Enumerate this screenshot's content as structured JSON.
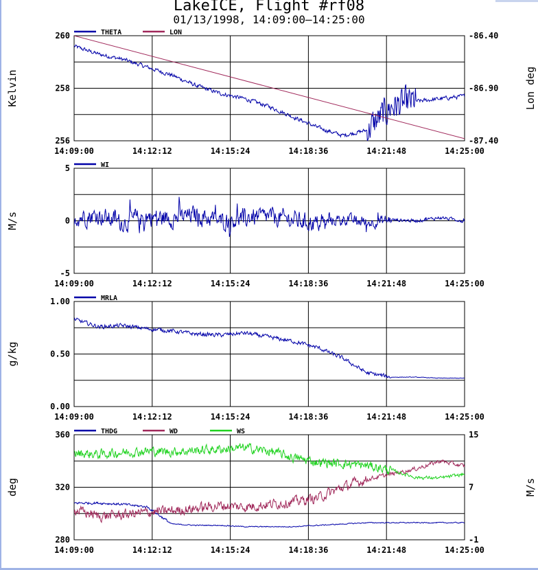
{
  "title": "LakeICE, Flight #rf08",
  "subtitle": "01/13/1998, 14:09:00–14:25:00",
  "colors": {
    "blue": "#0000a8",
    "maroon": "#a0285a",
    "green": "#1ed21e"
  },
  "chart_data": [
    {
      "type": "line",
      "x_ticks": [
        "14:09:00",
        "14:12:12",
        "14:15:24",
        "14:18:36",
        "14:21:48",
        "14:25:00"
      ],
      "ylabel": "Kelvin",
      "ylim": [
        256,
        260
      ],
      "y_ticks": [
        "256",
        "258",
        "260"
      ],
      "y2label": "Lon deg",
      "y2lim": [
        -87.4,
        -86.4
      ],
      "y2_ticks": [
        "-87.40",
        "-86.90",
        "-86.40"
      ],
      "grid": true,
      "legend": "top-left",
      "series": [
        {
          "name": "THETA",
          "axis": "left",
          "color": "blue",
          "x": [
            0,
            60,
            120,
            180,
            240,
            300,
            360,
            420,
            480,
            540,
            600,
            660,
            720,
            780,
            840,
            900,
            960
          ],
          "values": [
            259.6,
            259.3,
            259.1,
            258.8,
            258.5,
            258.1,
            257.8,
            257.6,
            257.3,
            256.9,
            256.5,
            256.2,
            256.4,
            257.3,
            257.5,
            257.6,
            257.7
          ]
        },
        {
          "name": "LON",
          "axis": "right",
          "color": "maroon",
          "x": [
            0,
            960
          ],
          "values": [
            -86.4,
            -87.38
          ]
        }
      ]
    },
    {
      "type": "line",
      "x_ticks": [
        "14:09:00",
        "14:12:12",
        "14:15:24",
        "14:18:36",
        "14:21:48",
        "14:25:00"
      ],
      "ylabel": "M/s",
      "ylim": [
        -5,
        5
      ],
      "y_ticks": [
        "-5",
        "0",
        "5"
      ],
      "grid": true,
      "legend": "top-left",
      "series": [
        {
          "name": "WI",
          "axis": "left",
          "color": "blue",
          "x": [
            0,
            60,
            120,
            180,
            240,
            300,
            360,
            420,
            480,
            540,
            600,
            660,
            720,
            780,
            840,
            900,
            960
          ],
          "values": [
            0.3,
            0.5,
            -0.2,
            0.4,
            0.2,
            0.6,
            -0.1,
            0.3,
            0.4,
            0.1,
            -0.3,
            0.2,
            -0.2,
            0.1,
            0.0,
            0.3,
            0.0
          ]
        }
      ]
    },
    {
      "type": "line",
      "x_ticks": [
        "14:09:00",
        "14:12:12",
        "14:15:24",
        "14:18:36",
        "14:21:48",
        "14:25:00"
      ],
      "ylabel": "g/kg",
      "ylim": [
        0.0,
        1.0
      ],
      "y_ticks": [
        "0.00",
        "0.50",
        "1.00"
      ],
      "grid": true,
      "legend": "top-left",
      "series": [
        {
          "name": "MRLA",
          "axis": "left",
          "color": "blue",
          "x": [
            0,
            60,
            120,
            180,
            240,
            300,
            360,
            420,
            480,
            540,
            600,
            660,
            720,
            780,
            840,
            900,
            960
          ],
          "values": [
            0.83,
            0.76,
            0.77,
            0.74,
            0.72,
            0.69,
            0.68,
            0.7,
            0.66,
            0.62,
            0.56,
            0.46,
            0.32,
            0.28,
            0.28,
            0.27,
            0.27
          ]
        }
      ]
    },
    {
      "type": "line",
      "x_ticks": [
        "14:09:00",
        "14:12:12",
        "14:15:24",
        "14:18:36",
        "14:21:48",
        "14:25:00"
      ],
      "ylabel": "deg",
      "ylim": [
        280,
        360
      ],
      "y_ticks": [
        "280",
        "320",
        "360"
      ],
      "y2label": "M/s",
      "y2lim": [
        -1,
        15
      ],
      "y2_ticks": [
        "-1",
        "7",
        "15"
      ],
      "grid": true,
      "legend": "top-left",
      "series": [
        {
          "name": "THDG",
          "axis": "left",
          "color": "blue",
          "x": [
            0,
            60,
            120,
            180,
            240,
            300,
            360,
            420,
            480,
            540,
            600,
            660,
            720,
            780,
            840,
            900,
            960
          ],
          "values": [
            308,
            308,
            307,
            305,
            292,
            291,
            291,
            290,
            290,
            290,
            291,
            292,
            293,
            293,
            293,
            293,
            293
          ]
        },
        {
          "name": "WD",
          "axis": "left",
          "color": "maroon",
          "x": [
            0,
            60,
            120,
            180,
            240,
            300,
            360,
            420,
            480,
            540,
            600,
            660,
            720,
            780,
            840,
            900,
            960
          ],
          "values": [
            303,
            298,
            299,
            301,
            302,
            304,
            306,
            305,
            307,
            309,
            312,
            320,
            326,
            330,
            334,
            340,
            336
          ]
        },
        {
          "name": "WS",
          "axis": "right",
          "color": "green",
          "x": [
            0,
            60,
            120,
            180,
            240,
            300,
            360,
            420,
            480,
            540,
            600,
            660,
            720,
            780,
            840,
            900,
            960
          ],
          "values": [
            12.2,
            12.0,
            12.3,
            12.5,
            12.4,
            12.6,
            12.8,
            13.0,
            12.5,
            11.5,
            10.8,
            10.6,
            10.3,
            9.6,
            8.5,
            8.4,
            9.0
          ]
        }
      ]
    }
  ]
}
